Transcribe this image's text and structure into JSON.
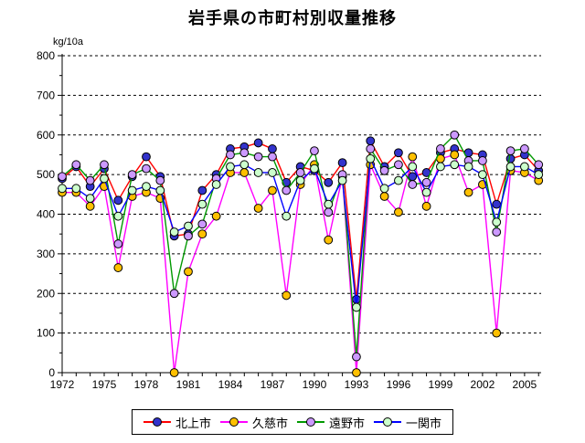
{
  "title": "岩手県の市町村別収量推移",
  "chart_data": {
    "type": "line",
    "title": "岩手県の市町村別収量推移",
    "unit_label": "kg/10a",
    "xlabel": "",
    "ylabel": "kg/10a",
    "ylim": [
      0,
      800
    ],
    "y_major_step": 100,
    "y_minor_step": 50,
    "grid": "horizontal-dashed",
    "legend_position": "bottom-center",
    "x": [
      1972,
      1973,
      1974,
      1975,
      1976,
      1977,
      1978,
      1979,
      1980,
      1981,
      1982,
      1983,
      1984,
      1985,
      1986,
      1987,
      1988,
      1989,
      1990,
      1991,
      1992,
      1993,
      1994,
      1995,
      1996,
      1997,
      1998,
      1999,
      2000,
      2001,
      2002,
      2003,
      2004,
      2005,
      2006
    ],
    "x_tick_label_years": [
      1972,
      1975,
      1978,
      1981,
      1984,
      1987,
      1990,
      1993,
      1996,
      1999,
      2002,
      2005
    ],
    "series": [
      {
        "name": "北上市",
        "romaji": "kitakami",
        "line_color": "#FF0000",
        "marker_color": "#3333CC",
        "values": [
          490,
          520,
          470,
          515,
          435,
          495,
          545,
          495,
          345,
          350,
          460,
          500,
          565,
          570,
          580,
          565,
          480,
          520,
          510,
          480,
          530,
          185,
          585,
          520,
          555,
          495,
          505,
          555,
          565,
          555,
          550,
          425,
          540,
          550,
          510
        ]
      },
      {
        "name": "久慈市",
        "romaji": "kuji",
        "line_color": "#FF00FF",
        "marker_color": "#FFC000",
        "values": [
          455,
          455,
          420,
          470,
          265,
          445,
          455,
          440,
          0,
          255,
          350,
          395,
          505,
          505,
          415,
          460,
          195,
          475,
          525,
          335,
          495,
          0,
          525,
          445,
          405,
          545,
          420,
          540,
          550,
          455,
          475,
          100,
          510,
          505,
          485
        ]
      },
      {
        "name": "遠野市",
        "romaji": "tono",
        "line_color": "#009900",
        "marker_color": "#CC99FF",
        "values": [
          495,
          525,
          485,
          525,
          325,
          500,
          515,
          485,
          200,
          345,
          375,
          490,
          550,
          555,
          545,
          545,
          460,
          505,
          560,
          405,
          500,
          40,
          565,
          510,
          525,
          475,
          480,
          565,
          600,
          535,
          535,
          355,
          560,
          565,
          525
        ]
      },
      {
        "name": "一関市",
        "romaji": "ichinoseki",
        "line_color": "#0000FF",
        "marker_color": "#CCFFCC",
        "values": [
          465,
          465,
          440,
          490,
          395,
          460,
          470,
          460,
          355,
          370,
          425,
          475,
          520,
          525,
          505,
          505,
          395,
          485,
          515,
          425,
          485,
          165,
          540,
          465,
          485,
          520,
          455,
          520,
          525,
          520,
          500,
          380,
          520,
          520,
          500
        ]
      }
    ]
  }
}
